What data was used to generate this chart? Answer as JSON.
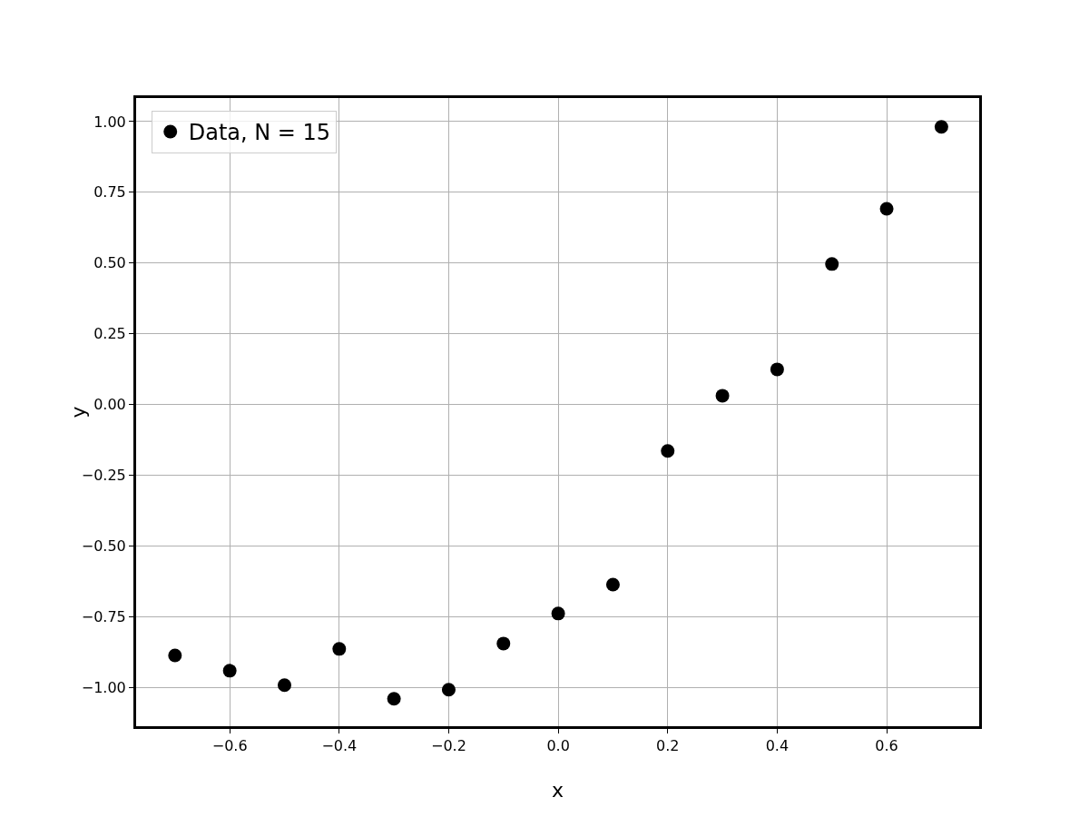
{
  "chart_data": {
    "type": "scatter",
    "xlabel": "x",
    "ylabel": "y",
    "x": [
      -0.7,
      -0.6,
      -0.5,
      -0.4,
      -0.3,
      -0.2,
      -0.1,
      0.0,
      0.1,
      0.2,
      0.3,
      0.4,
      0.5,
      0.6,
      0.7
    ],
    "series": [
      {
        "name": "Data, N = 15",
        "color": "#000000",
        "values": [
          -0.885,
          -0.939,
          -0.99,
          -0.862,
          -1.038,
          -1.006,
          -0.843,
          -0.737,
          -0.635,
          -0.163,
          0.032,
          0.125,
          0.497,
          0.692,
          0.981
        ]
      }
    ],
    "xlim": [
      -0.771,
      0.769
    ],
    "ylim": [
      -1.135,
      1.083
    ],
    "xticks": [
      {
        "value": -0.6,
        "label": "−0.6"
      },
      {
        "value": -0.4,
        "label": "−0.4"
      },
      {
        "value": -0.2,
        "label": "−0.2"
      },
      {
        "value": 0,
        "label": "0.0"
      },
      {
        "value": 0.2,
        "label": "0.2"
      },
      {
        "value": 0.4,
        "label": "0.4"
      },
      {
        "value": 0.6,
        "label": "0.6"
      }
    ],
    "yticks": [
      {
        "value": -1,
        "label": "−1.00"
      },
      {
        "value": -0.75,
        "label": "−0.75"
      },
      {
        "value": -0.5,
        "label": "−0.50"
      },
      {
        "value": -0.25,
        "label": "−0.25"
      },
      {
        "value": 0,
        "label": "0.00"
      },
      {
        "value": 0.25,
        "label": "0.25"
      },
      {
        "value": 0.5,
        "label": "0.50"
      },
      {
        "value": 0.75,
        "label": "0.75"
      },
      {
        "value": 1,
        "label": "1.00"
      }
    ],
    "grid": true,
    "legend": "top left",
    "marker": "circle"
  }
}
